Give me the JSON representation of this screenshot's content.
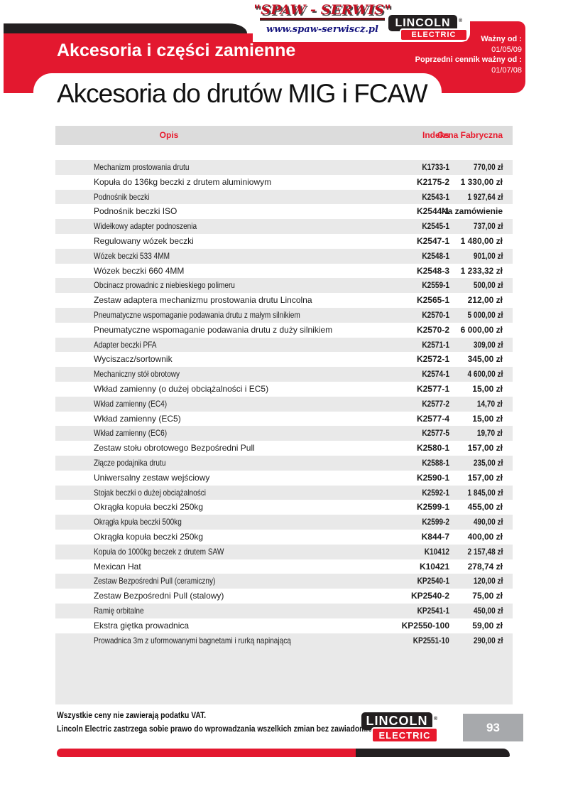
{
  "header": {
    "spaw_logo": {
      "title": "\"SPAW - SERWIS\"",
      "url": "www.spaw-serwiscz.pl"
    },
    "lincoln_logo": {
      "line1": "LINCOLN",
      "line2": "ELECTRIC",
      "registered": "®"
    },
    "band_title": "Akcesoria i części zamienne",
    "validity": {
      "label1": "Ważny od :",
      "date1": "01/05/09",
      "label2": "Poprzedni cennik ważny od :",
      "date2": "01/07/08"
    }
  },
  "page_title": "Akcesoria do drutów MIG i FCAW",
  "table": {
    "columns": [
      "Opis",
      "Indeks",
      "Cena Fabryczna"
    ],
    "rows": [
      {
        "opis": "Mechanizm prostowania drutu",
        "indeks": "K1733-1",
        "cena": "770,00 zł"
      },
      {
        "opis": "Kopuła do 136kg beczki z drutem aluminiowym",
        "indeks": "K2175-2",
        "cena": "1 330,00 zł"
      },
      {
        "opis": "Podnośnik beczki",
        "indeks": "K2543-1",
        "cena": "1 927,64 zł"
      },
      {
        "opis": "Podnośnik beczki ISO",
        "indeks": "K2544-1",
        "cena": "Na zamówienie"
      },
      {
        "opis": "Widełkowy adapter podnoszenia",
        "indeks": "K2545-1",
        "cena": "737,00 zł"
      },
      {
        "opis": "Regulowany wózek beczki",
        "indeks": "K2547-1",
        "cena": "1 480,00 zł"
      },
      {
        "opis": "Wózek beczki 533 4MM",
        "indeks": "K2548-1",
        "cena": "901,00 zł"
      },
      {
        "opis": "Wózek beczki 660 4MM",
        "indeks": "K2548-3",
        "cena": "1 233,32 zł"
      },
      {
        "opis": "Obcinacz prowadnic z niebieskiego polimeru",
        "indeks": "K2559-1",
        "cena": "500,00 zł"
      },
      {
        "opis": "Zestaw adaptera mechanizmu prostowania drutu Lincolna",
        "indeks": "K2565-1",
        "cena": "212,00 zł"
      },
      {
        "opis": "Pneumatyczne wspomaganie podawania drutu z małym silnikiem",
        "indeks": "K2570-1",
        "cena": "5 000,00 zł"
      },
      {
        "opis": "Pneumatyczne wspomaganie podawania drutu z duży silnikiem",
        "indeks": "K2570-2",
        "cena": "6 000,00 zł"
      },
      {
        "opis": "Adapter beczki PFA",
        "indeks": "K2571-1",
        "cena": "309,00 zł"
      },
      {
        "opis": "Wyciszacz/sortownik",
        "indeks": "K2572-1",
        "cena": "345,00 zł"
      },
      {
        "opis": "Mechaniczny stół obrotowy",
        "indeks": "K2574-1",
        "cena": "4 600,00 zł"
      },
      {
        "opis": "Wkład zamienny (o dużej obciążalności i EC5)",
        "indeks": "K2577-1",
        "cena": "15,00 zł"
      },
      {
        "opis": "Wkład zamienny (EC4)",
        "indeks": "K2577-2",
        "cena": "14,70 zł"
      },
      {
        "opis": "Wkład zamienny (EC5)",
        "indeks": "K2577-4",
        "cena": "15,00 zł"
      },
      {
        "opis": "Wkład zamienny (EC6)",
        "indeks": "K2577-5",
        "cena": "19,70 zł"
      },
      {
        "opis": "Zestaw stołu obrotowego Bezpośredni Pull",
        "indeks": "K2580-1",
        "cena": "157,00 zł"
      },
      {
        "opis": "Złącze podajnika drutu",
        "indeks": "K2588-1",
        "cena": "235,00 zł"
      },
      {
        "opis": "Uniwersalny zestaw wejściowy",
        "indeks": "K2590-1",
        "cena": "157,00 zł"
      },
      {
        "opis": "Stojak beczki o dużej obciążalności",
        "indeks": "K2592-1",
        "cena": "1 845,00 zł"
      },
      {
        "opis": "Okrągła kopuła beczki 250kg",
        "indeks": "K2599-1",
        "cena": "455,00 zł"
      },
      {
        "opis": "Okrągła kpuła beczki 500kg",
        "indeks": "K2599-2",
        "cena": "490,00 zł"
      },
      {
        "opis": "Okrągła kopuła beczki 250kg",
        "indeks": "K844-7",
        "cena": "400,00 zł"
      },
      {
        "opis": "Kopuła do 1000kg beczek z drutem SAW",
        "indeks": "K10412",
        "cena": "2 157,48 zł"
      },
      {
        "opis": "Mexican Hat",
        "indeks": "K10421",
        "cena": "278,74 zł"
      },
      {
        "opis": "Zestaw Bezpośredni Pull (ceramiczny)",
        "indeks": "KP2540-1",
        "cena": "120,00 zł"
      },
      {
        "opis": "Zestaw Bezpośredni Pull (stalowy)",
        "indeks": "KP2540-2",
        "cena": "75,00 zł"
      },
      {
        "opis": "Ramię orbitalne",
        "indeks": "KP2541-1",
        "cena": "450,00 zł"
      },
      {
        "opis": "Ekstra giętka prowadnica",
        "indeks": "KP2550-100",
        "cena": "59,00 zł"
      },
      {
        "opis": "Prowadnica 3m z uformowanymi bagnetami i rurką napinającą",
        "indeks": "KP2551-10",
        "cena": "290,00 zł"
      }
    ]
  },
  "footer": {
    "note1": "Wszystkie ceny nie zawierają podatku VAT.",
    "note2": "Lincoln Electric zastrzega sobie prawo do wprowadzania wszelkich zmian bez zawiadomienia.",
    "lincoln_logo": {
      "line1": "LINCOLN",
      "line2": "ELECTRIC",
      "registered": "®"
    },
    "page_number": "93"
  },
  "colors": {
    "band_red": "#e3182f",
    "logo_red": "#e8192c",
    "row_gray": "#e9e9e9",
    "header_gray": "#dcdcdc",
    "page_box_gray": "#a7a9ac",
    "black": "#231f20"
  }
}
